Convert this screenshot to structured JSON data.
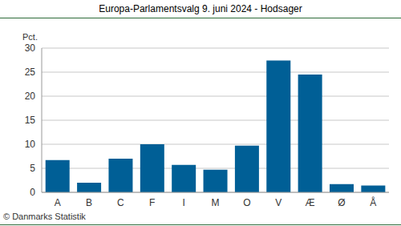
{
  "chart_data": {
    "type": "bar",
    "title": "Europa-Parlamentsvalg 9. juni 2024 - Hodsager",
    "ylabel": "Pct.",
    "source": "© Danmarks Statistik",
    "categories": [
      "A",
      "B",
      "C",
      "F",
      "I",
      "M",
      "O",
      "V",
      "Æ",
      "Ø",
      "Å"
    ],
    "values": [
      6.7,
      2.0,
      7.0,
      10.0,
      5.7,
      4.7,
      9.7,
      27.4,
      24.5,
      1.7,
      1.4
    ],
    "color": "#005f96",
    "ylim": [
      0,
      30
    ],
    "yticks": [
      0,
      5,
      10,
      15,
      20,
      25,
      30
    ],
    "grid": true
  }
}
